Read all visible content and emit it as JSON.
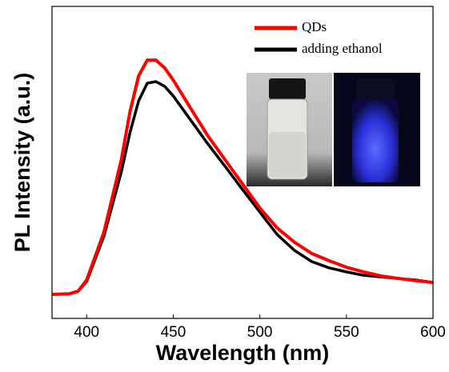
{
  "chart_data": {
    "type": "line",
    "x_label": "Wavelength (nm)",
    "y_label": "PL Intensity (a.u.)",
    "x": [
      380,
      390,
      395,
      400,
      410,
      420,
      425,
      430,
      435,
      440,
      445,
      450,
      460,
      470,
      480,
      490,
      500,
      510,
      520,
      530,
      540,
      550,
      560,
      570,
      580,
      590,
      600
    ],
    "series": [
      {
        "name": "QDs",
        "color": "#ff0000",
        "values": [
          0.077,
          0.079,
          0.087,
          0.123,
          0.277,
          0.508,
          0.662,
          0.777,
          0.828,
          0.828,
          0.803,
          0.764,
          0.674,
          0.585,
          0.508,
          0.431,
          0.354,
          0.29,
          0.244,
          0.208,
          0.185,
          0.164,
          0.149,
          0.136,
          0.128,
          0.121,
          0.115
        ]
      },
      {
        "name": "adding ethanol",
        "color": "#000000",
        "values": [
          0.077,
          0.079,
          0.087,
          0.118,
          0.264,
          0.469,
          0.595,
          0.697,
          0.754,
          0.759,
          0.744,
          0.713,
          0.636,
          0.559,
          0.487,
          0.413,
          0.341,
          0.269,
          0.218,
          0.182,
          0.162,
          0.149,
          0.138,
          0.133,
          0.128,
          0.123,
          0.115
        ]
      }
    ],
    "xlim": [
      380,
      600
    ],
    "xticks": [
      400,
      450,
      500,
      550,
      600
    ],
    "ylim": [
      0,
      1
    ],
    "legend": "upper-right"
  }
}
